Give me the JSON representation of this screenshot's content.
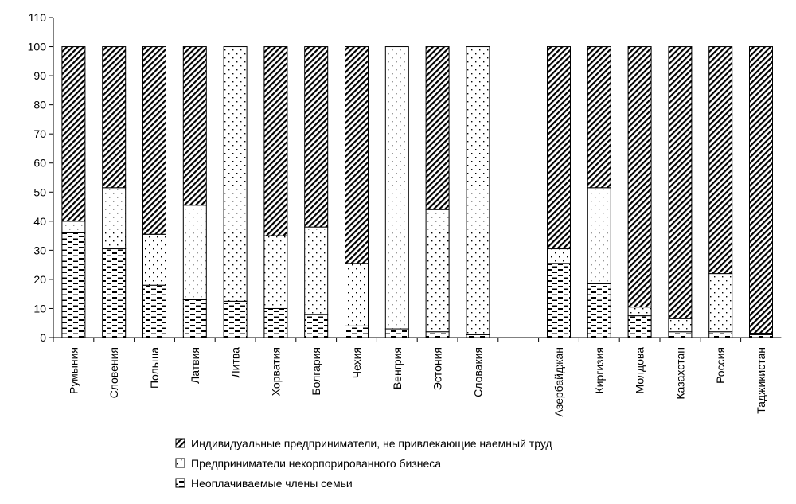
{
  "chart_data": {
    "type": "bar",
    "stacked": true,
    "categories": [
      "Румыния",
      "Словения",
      "Польша",
      "Латвия",
      "Литва",
      "Хорватия",
      "Болгария",
      "Чехия",
      "Венгрия",
      "Эстония",
      "Словакия",
      "",
      "Азербайджан",
      "Киргизия",
      "Молдова",
      "Казахстан",
      "Россия",
      "Таджикистан"
    ],
    "series": [
      {
        "name": "Неоплачиваемые члены семьи",
        "pattern": "dash",
        "values": [
          36,
          30.5,
          18,
          13,
          12.5,
          10,
          8,
          4,
          3,
          2,
          1,
          null,
          25.5,
          18.5,
          7.5,
          2,
          2,
          1
        ]
      },
      {
        "name": "Предприниматели некорпорированного бизнеса",
        "pattern": "dots",
        "values": [
          4,
          21,
          17.5,
          32.5,
          87.5,
          25,
          30,
          21.5,
          97,
          42,
          99,
          null,
          5,
          33,
          3,
          4.5,
          20,
          0.5
        ]
      },
      {
        "name": "Индивидуальные предприниматели, не привлекающие наемный труд",
        "pattern": "hatch",
        "values": [
          60,
          48.5,
          64.5,
          54.5,
          0,
          65,
          62,
          74.5,
          0,
          56,
          0,
          null,
          69.5,
          48.5,
          89.5,
          93.5,
          78,
          98.5
        ]
      }
    ],
    "ylim": [
      0,
      110
    ],
    "yticks": [
      0,
      10,
      20,
      30,
      40,
      50,
      60,
      70,
      80,
      90,
      100,
      110
    ],
    "legend_order": [
      "Индивидуальные предприниматели, не привлекающие наемный труд",
      "Предприниматели некорпорированного бизнеса",
      "Неоплачиваемые члены семьи"
    ],
    "legend_position": "bottom",
    "grid": false,
    "title": "",
    "xlabel": "",
    "ylabel": ""
  }
}
